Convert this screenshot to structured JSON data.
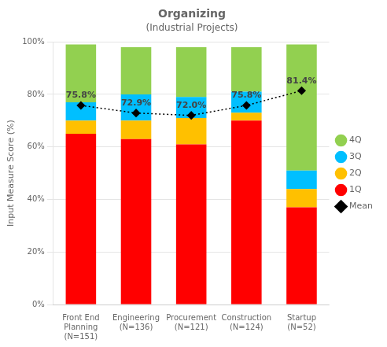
{
  "chart_data": {
    "type": "bar",
    "title": "Organizing",
    "subtitle": "(Industrial Projects)",
    "ylabel": "Input Measure Score (%)",
    "categories": [
      "Front End\nPlanning\n(N=151)",
      "Engineering\n(N=136)",
      "Procurement\n(N=121)",
      "Construction\n(N=124)",
      "Startup\n(N=52)"
    ],
    "stacked": true,
    "series": [
      {
        "name": "1Q",
        "color": "#FF0000",
        "values": [
          65,
          63,
          61,
          70,
          37
        ]
      },
      {
        "name": "2Q",
        "color": "#FFC000",
        "values": [
          5,
          7,
          10,
          3,
          7
        ]
      },
      {
        "name": "3Q",
        "color": "#00BFFF",
        "values": [
          7,
          10,
          8,
          8,
          7
        ]
      },
      {
        "name": "4Q",
        "color": "#92D050",
        "values": [
          22,
          18,
          19,
          17,
          48
        ]
      },
      {
        "name": "Mean",
        "type": "line",
        "color": "#000000",
        "marker": "diamond",
        "line_style": "dotted",
        "data_labels": true,
        "values": [
          75.8,
          72.9,
          72.0,
          75.8,
          81.4
        ],
        "value_labels": [
          "75.8%",
          "72.9%",
          "72.0%",
          "75.8%",
          "81.4%"
        ]
      }
    ],
    "ylim": [
      0,
      100
    ],
    "yticks": [
      {
        "value": 0,
        "label": "0%"
      },
      {
        "value": 20,
        "label": "20%"
      },
      {
        "value": 40,
        "label": "40%"
      },
      {
        "value": 60,
        "label": "60%"
      },
      {
        "value": 80,
        "label": "80%"
      },
      {
        "value": 100,
        "label": "100%"
      }
    ],
    "grid": true,
    "legend": "right"
  }
}
